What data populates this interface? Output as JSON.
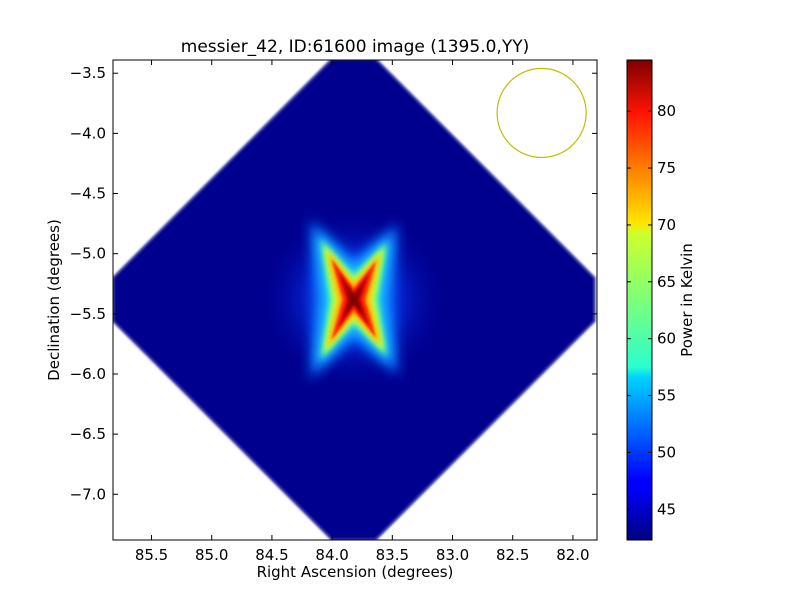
{
  "chart_data": {
    "type": "heatmap",
    "title": "messier_42, ID:61600 image (1395.0,YY)",
    "xlabel": "Right Ascension (degrees)",
    "ylabel": "Declination (degrees)",
    "xlim": [
      85.82,
      81.8
    ],
    "ylim": [
      -7.38,
      -3.39
    ],
    "x_ticks": [
      85.5,
      85.0,
      84.5,
      84.0,
      83.5,
      83.0,
      82.5,
      82.0
    ],
    "x_tick_labels": [
      "85.5",
      "85.0",
      "84.5",
      "84.0",
      "83.5",
      "83.0",
      "82.5",
      "82.0"
    ],
    "y_ticks": [
      -3.5,
      -4.0,
      -4.5,
      -5.0,
      -5.5,
      -6.0,
      -6.5,
      -7.0
    ],
    "y_tick_labels": [
      "−3.5",
      "−4.0",
      "−4.5",
      "−5.0",
      "−5.5",
      "−6.0",
      "−6.5",
      "−7.0"
    ],
    "colorbar": {
      "label": "Power in Kelvin",
      "min": 42.3,
      "max": 84.5,
      "ticks": [
        45,
        50,
        55,
        60,
        65,
        70,
        75,
        80
      ],
      "tick_labels": [
        "45",
        "50",
        "55",
        "60",
        "65",
        "70",
        "75",
        "80"
      ],
      "colormap": "jet"
    },
    "field": {
      "shape": "diamond",
      "center": [
        83.82,
        -5.38
      ],
      "half_width_ra": 2.0,
      "half_height_dec": 2.0,
      "background_value": 42.3
    },
    "source": {
      "center": [
        83.82,
        -5.38
      ],
      "peak_value": 84.5,
      "shape": "four-armed cross"
    },
    "beam_circle": {
      "center": [
        82.26,
        -3.83
      ],
      "radius_ra": 0.37,
      "color": "#bfbf00"
    }
  }
}
